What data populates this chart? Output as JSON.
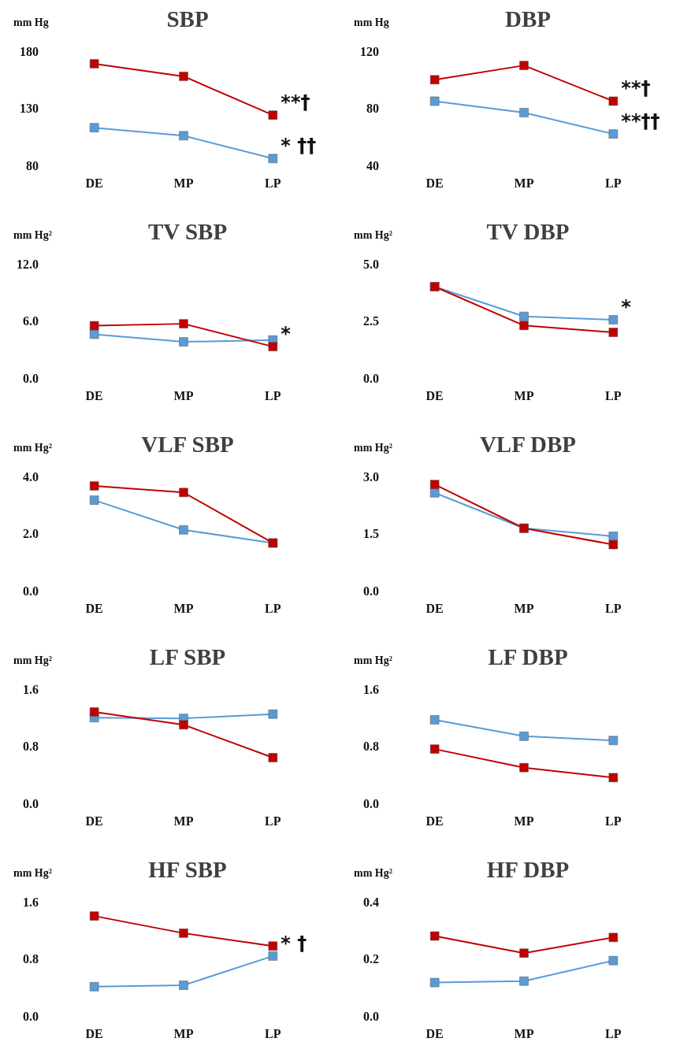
{
  "chart_data": [
    {
      "type": "line",
      "title": "SBP",
      "ylabel": "mm Hg",
      "categories": [
        "DE",
        "MP",
        "LP"
      ],
      "marker": "square",
      "ylim": [
        80,
        180
      ],
      "yticks": [
        80,
        130,
        180
      ],
      "series": [
        {
          "color": "#c00000",
          "values": [
            169,
            158,
            124
          ]
        },
        {
          "color": "#5b9bd5",
          "values": [
            113,
            106,
            86
          ]
        }
      ],
      "annotations": [
        {
          "text": "**†",
          "x": "LP",
          "y": 124
        },
        {
          "text": "* ††",
          "x": "LP",
          "y": 86
        }
      ]
    },
    {
      "type": "line",
      "title": "DBP",
      "ylabel": "mm Hg",
      "categories": [
        "DE",
        "MP",
        "LP"
      ],
      "marker": "square",
      "ylim": [
        40,
        120
      ],
      "yticks": [
        40,
        80,
        120
      ],
      "series": [
        {
          "color": "#c00000",
          "values": [
            100,
            110,
            85
          ]
        },
        {
          "color": "#5b9bd5",
          "values": [
            85,
            77,
            62
          ]
        }
      ],
      "annotations": [
        {
          "text": "**†",
          "x": "LP",
          "y": 85
        },
        {
          "text": "**††",
          "x": "LP",
          "y": 62
        }
      ]
    },
    {
      "type": "line",
      "title": "TV SBP",
      "ylabel": "mm Hg²",
      "categories": [
        "DE",
        "MP",
        "LP"
      ],
      "marker": "square",
      "ylim": [
        0,
        12
      ],
      "yticks": [
        {
          "value": 0,
          "label": "0.0"
        },
        {
          "value": 6,
          "label": "6.0"
        },
        {
          "value": 12,
          "label": "12.0"
        }
      ],
      "series": [
        {
          "color": "#c00000",
          "values": [
            5.5,
            5.7,
            3.3
          ]
        },
        {
          "color": "#5b9bd5",
          "values": [
            4.6,
            3.8,
            4.0
          ]
        }
      ],
      "annotations": [
        {
          "text": "*",
          "x": "LP",
          "y": 3.3
        }
      ]
    },
    {
      "type": "line",
      "title": "TV DBP",
      "ylabel": "mm Hg²",
      "categories": [
        "DE",
        "MP",
        "LP"
      ],
      "marker": "square",
      "ylim": [
        0,
        5
      ],
      "yticks": [
        {
          "value": 0,
          "label": "0.0"
        },
        {
          "value": 2.5,
          "label": "2.5"
        },
        {
          "value": 5,
          "label": "5.0"
        }
      ],
      "series": [
        {
          "color": "#c00000",
          "values": [
            4.0,
            2.3,
            2.0
          ]
        },
        {
          "color": "#5b9bd5",
          "values": [
            4.0,
            2.7,
            2.55
          ]
        }
      ],
      "annotations": [
        {
          "text": "*",
          "x": "LP",
          "y": 2.55
        }
      ]
    },
    {
      "type": "line",
      "title": "VLF SBP",
      "ylabel": "mm Hg²",
      "categories": [
        "DE",
        "MP",
        "LP"
      ],
      "marker": "square",
      "ylim": [
        0,
        4
      ],
      "yticks": [
        {
          "value": 0,
          "label": "0.0"
        },
        {
          "value": 2,
          "label": "2.0"
        },
        {
          "value": 4,
          "label": "4.0"
        }
      ],
      "series": [
        {
          "color": "#c00000",
          "values": [
            3.67,
            3.44,
            1.67
          ]
        },
        {
          "color": "#5b9bd5",
          "values": [
            3.17,
            2.13,
            1.67
          ]
        }
      ]
    },
    {
      "type": "line",
      "title": "VLF DBP",
      "ylabel": "mm Hg²",
      "categories": [
        "DE",
        "MP",
        "LP"
      ],
      "marker": "square",
      "ylim": [
        0,
        3
      ],
      "yticks": [
        {
          "value": 0,
          "label": "0.0"
        },
        {
          "value": 1.5,
          "label": "1.5"
        },
        {
          "value": 3,
          "label": "3.0"
        }
      ],
      "series": [
        {
          "color": "#c00000",
          "values": [
            2.79,
            1.64,
            1.21
          ]
        },
        {
          "color": "#5b9bd5",
          "values": [
            2.57,
            1.64,
            1.43
          ]
        }
      ]
    },
    {
      "type": "line",
      "title": "LF SBP",
      "ylabel": "mm Hg²",
      "categories": [
        "DE",
        "MP",
        "LP"
      ],
      "marker": "square",
      "ylim": [
        0,
        1.6
      ],
      "yticks": [
        {
          "value": 0,
          "label": "0.0"
        },
        0.8,
        1.6
      ],
      "series": [
        {
          "color": "#c00000",
          "values": [
            1.28,
            1.1,
            0.64
          ]
        },
        {
          "color": "#5b9bd5",
          "values": [
            1.2,
            1.19,
            1.25
          ]
        }
      ]
    },
    {
      "type": "line",
      "title": "LF DBP",
      "ylabel": "mm Hg²",
      "categories": [
        "DE",
        "MP",
        "LP"
      ],
      "marker": "square",
      "ylim": [
        0,
        1.6
      ],
      "yticks": [
        {
          "value": 0,
          "label": "0.0"
        },
        0.8,
        1.6
      ],
      "series": [
        {
          "color": "#c00000",
          "values": [
            0.76,
            0.5,
            0.36
          ]
        },
        {
          "color": "#5b9bd5",
          "values": [
            1.17,
            0.94,
            0.88
          ]
        }
      ]
    },
    {
      "type": "line",
      "title": "HF SBP",
      "ylabel": "mm Hg²",
      "categories": [
        "DE",
        "MP",
        "LP"
      ],
      "marker": "square",
      "ylim": [
        0,
        1.6
      ],
      "yticks": [
        {
          "value": 0,
          "label": "0.0"
        },
        0.8,
        1.6
      ],
      "series": [
        {
          "color": "#c00000",
          "values": [
            1.4,
            1.16,
            0.98
          ]
        },
        {
          "color": "#5b9bd5",
          "values": [
            0.41,
            0.43,
            0.84
          ]
        }
      ],
      "annotations": [
        {
          "text": "* †",
          "x": "LP",
          "y": 0.84
        }
      ]
    },
    {
      "type": "line",
      "title": "HF DBP",
      "ylabel": "mm Hg²",
      "categories": [
        "DE",
        "MP",
        "LP"
      ],
      "marker": "square",
      "ylim": [
        0,
        0.4
      ],
      "yticks": [
        {
          "value": 0,
          "label": "0.0"
        },
        0.2,
        0.4
      ],
      "series": [
        {
          "color": "#c00000",
          "values": [
            0.28,
            0.22,
            0.275
          ]
        },
        {
          "color": "#5b9bd5",
          "values": [
            0.117,
            0.122,
            0.194
          ]
        }
      ]
    }
  ]
}
